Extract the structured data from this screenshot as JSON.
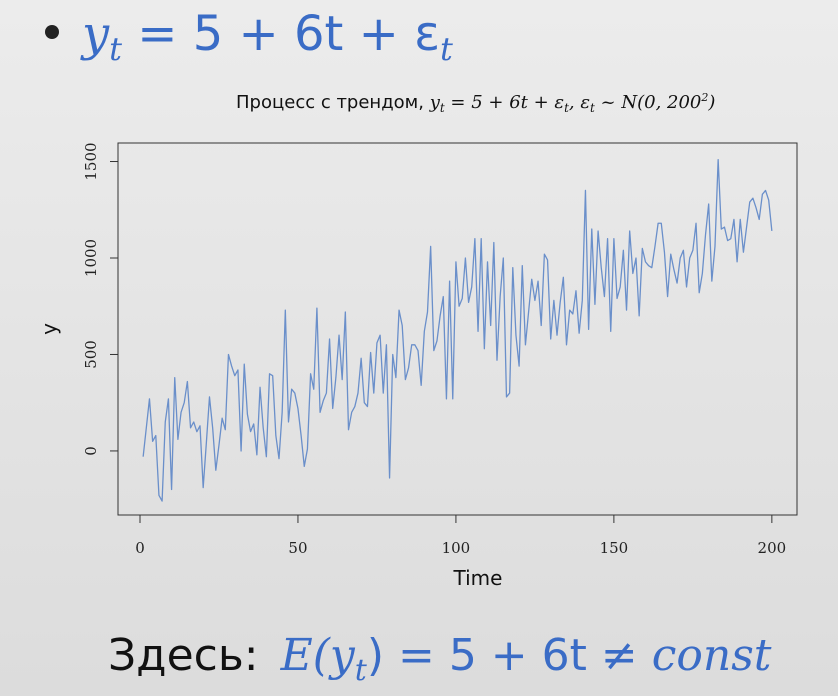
{
  "slide": {
    "heading": [
      "y",
      "t",
      " = 5 + 6t + ε",
      "t"
    ],
    "footer": [
      "Здесь:",
      "E(y",
      "t",
      ") = 5 + 6t ≠ ",
      "const"
    ]
  },
  "chart_data": {
    "type": "line",
    "title": [
      "Процесс с трендом, ",
      "y",
      "t",
      " = 5 + 6t + ε",
      "t",
      ", ε",
      "t",
      " ~ N(0, 200",
      "2",
      ")"
    ],
    "x_label": "Time",
    "y_label": "y",
    "color": "#6a8fca",
    "grid": false,
    "xlim": [
      -6.96,
      207.96
    ],
    "ylim": [
      -332,
      1596
    ],
    "xticks": [
      0,
      50,
      100,
      150,
      200
    ],
    "yticks": [
      0,
      500,
      1000,
      1500
    ],
    "x": [
      1,
      2,
      3,
      4,
      5,
      6,
      7,
      8,
      9,
      10,
      11,
      12,
      13,
      14,
      15,
      16,
      17,
      18,
      19,
      20,
      21,
      22,
      23,
      24,
      25,
      26,
      27,
      28,
      29,
      30,
      31,
      32,
      33,
      34,
      35,
      36,
      37,
      38,
      39,
      40,
      41,
      42,
      43,
      44,
      45,
      46,
      47,
      48,
      49,
      50,
      51,
      52,
      53,
      54,
      55,
      56,
      57,
      58,
      59,
      60,
      61,
      62,
      63,
      64,
      65,
      66,
      67,
      68,
      69,
      70,
      71,
      72,
      73,
      74,
      75,
      76,
      77,
      78,
      79,
      80,
      81,
      82,
      83,
      84,
      85,
      86,
      87,
      88,
      89,
      90,
      91,
      92,
      93,
      94,
      95,
      96,
      97,
      98,
      99,
      100,
      101,
      102,
      103,
      104,
      105,
      106,
      107,
      108,
      109,
      110,
      111,
      112,
      113,
      114,
      115,
      116,
      117,
      118,
      119,
      120,
      121,
      122,
      123,
      124,
      125,
      126,
      127,
      128,
      129,
      130,
      131,
      132,
      133,
      134,
      135,
      136,
      137,
      138,
      139,
      140,
      141,
      142,
      143,
      144,
      145,
      146,
      147,
      148,
      149,
      150,
      151,
      152,
      153,
      154,
      155,
      156,
      157,
      158,
      159,
      160,
      161,
      162,
      163,
      164,
      165,
      166,
      167,
      168,
      169,
      170,
      171,
      172,
      173,
      174,
      175,
      176,
      177,
      178,
      179,
      180,
      181,
      182,
      183,
      184,
      185,
      186,
      187,
      188,
      189,
      190,
      191,
      192,
      193,
      194,
      195,
      196,
      197,
      198,
      199,
      200
    ],
    "values": [
      -30,
      120,
      270,
      50,
      80,
      -230,
      -260,
      150,
      270,
      -200,
      380,
      60,
      200,
      250,
      360,
      120,
      150,
      100,
      130,
      -190,
      40,
      280,
      120,
      -100,
      30,
      170,
      110,
      500,
      440,
      390,
      420,
      0,
      450,
      190,
      100,
      140,
      -20,
      330,
      120,
      -30,
      400,
      390,
      80,
      -40,
      200,
      730,
      150,
      320,
      300,
      220,
      80,
      -80,
      10,
      400,
      320,
      740,
      200,
      260,
      300,
      580,
      220,
      380,
      600,
      370,
      720,
      110,
      200,
      230,
      300,
      480,
      250,
      230,
      510,
      300,
      560,
      600,
      300,
      550,
      -140,
      500,
      380,
      730,
      650,
      370,
      430,
      550,
      550,
      520,
      340,
      620,
      720,
      1060,
      520,
      570,
      700,
      800,
      270,
      880,
      270,
      980,
      750,
      790,
      1000,
      770,
      850,
      1100,
      620,
      1100,
      530,
      980,
      650,
      1080,
      470,
      800,
      1000,
      280,
      300,
      950,
      600,
      440,
      960,
      550,
      720,
      890,
      780,
      880,
      650,
      1020,
      990,
      580,
      780,
      600,
      770,
      900,
      550,
      730,
      710,
      830,
      610,
      780,
      1350,
      630,
      1150,
      760,
      1140,
      950,
      800,
      1100,
      620,
      1100,
      790,
      850,
      1040,
      730,
      1140,
      920,
      1000,
      700,
      1050,
      980,
      960,
      950,
      1060,
      1180,
      1180,
      1030,
      800,
      1020,
      940,
      870,
      1000,
      1040,
      850,
      1000,
      1040,
      1180,
      820,
      920,
      1120,
      1280,
      880,
      1060,
      1510,
      1150,
      1160,
      1090,
      1100,
      1200,
      980,
      1200,
      1030,
      1160,
      1290,
      1310,
      1260,
      1200,
      1330,
      1350,
      1300,
      1140
    ]
  }
}
